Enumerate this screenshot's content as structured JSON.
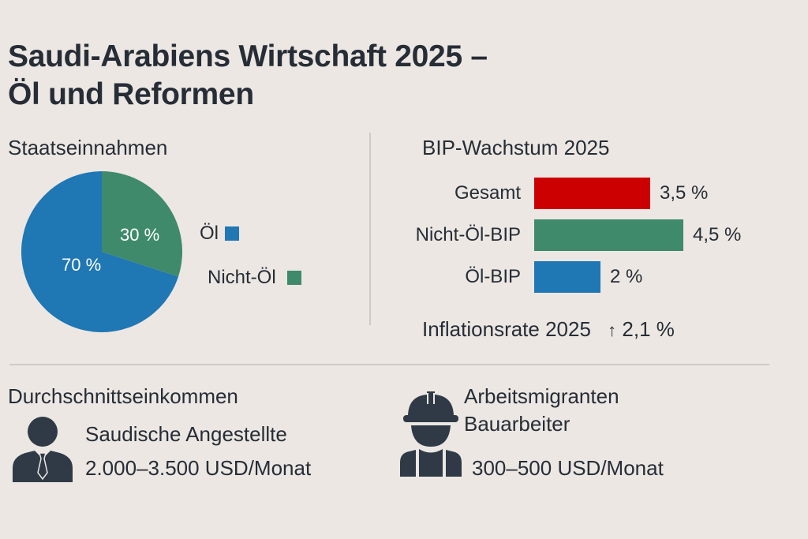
{
  "title_line1": "Saudi-Arabiens Wirtschaft 2025 –",
  "title_line2": "Öl und Reformen",
  "colors": {
    "background": "#ece7e3",
    "text": "#262d36",
    "blue": "#1f77b4",
    "green": "#3f8a6b",
    "red": "#cc0000",
    "divider": "#cfcac6"
  },
  "chart_data": [
    {
      "type": "pie",
      "title": "Staatseinnahmen",
      "slices": [
        {
          "name": "Öl",
          "value": 70,
          "label": "70 %",
          "color": "#1f77b4"
        },
        {
          "name": "Nicht-Öl",
          "value": 30,
          "label": "30 %",
          "color": "#3f8a6b"
        }
      ],
      "legend": [
        {
          "label": "Öl",
          "color": "#1f77b4"
        },
        {
          "label": "Nicht-Öl",
          "color": "#3f8a6b"
        }
      ],
      "legend_position": "right"
    },
    {
      "type": "bar",
      "orientation": "horizontal",
      "title": "BIP-Wachstum 2025",
      "categories": [
        "Gesamt",
        "Nicht-Öl-BIP",
        "Öl-BIP"
      ],
      "values": [
        3.5,
        4.5,
        2
      ],
      "value_labels": [
        "3,5 %",
        "4,5 %",
        "2 %"
      ],
      "colors": [
        "#cc0000",
        "#3f8a6b",
        "#1f77b4"
      ],
      "unit": "%"
    }
  ],
  "inflation": {
    "label": "Inflationsrate 2025",
    "arrow": "↑",
    "value": "2,1 %"
  },
  "income": {
    "heading": "Durchschnittseinkommen",
    "saudi": {
      "icon": "businessman-icon",
      "label": "Saudische Angestellte",
      "value": "2.000–3.500 USD/Monat"
    },
    "migrant": {
      "icon": "construction-worker-icon",
      "label_line1": "Arbeitsmigranten",
      "label_line2": "Bauarbeiter",
      "value": "300–500 USD/Monat"
    }
  }
}
